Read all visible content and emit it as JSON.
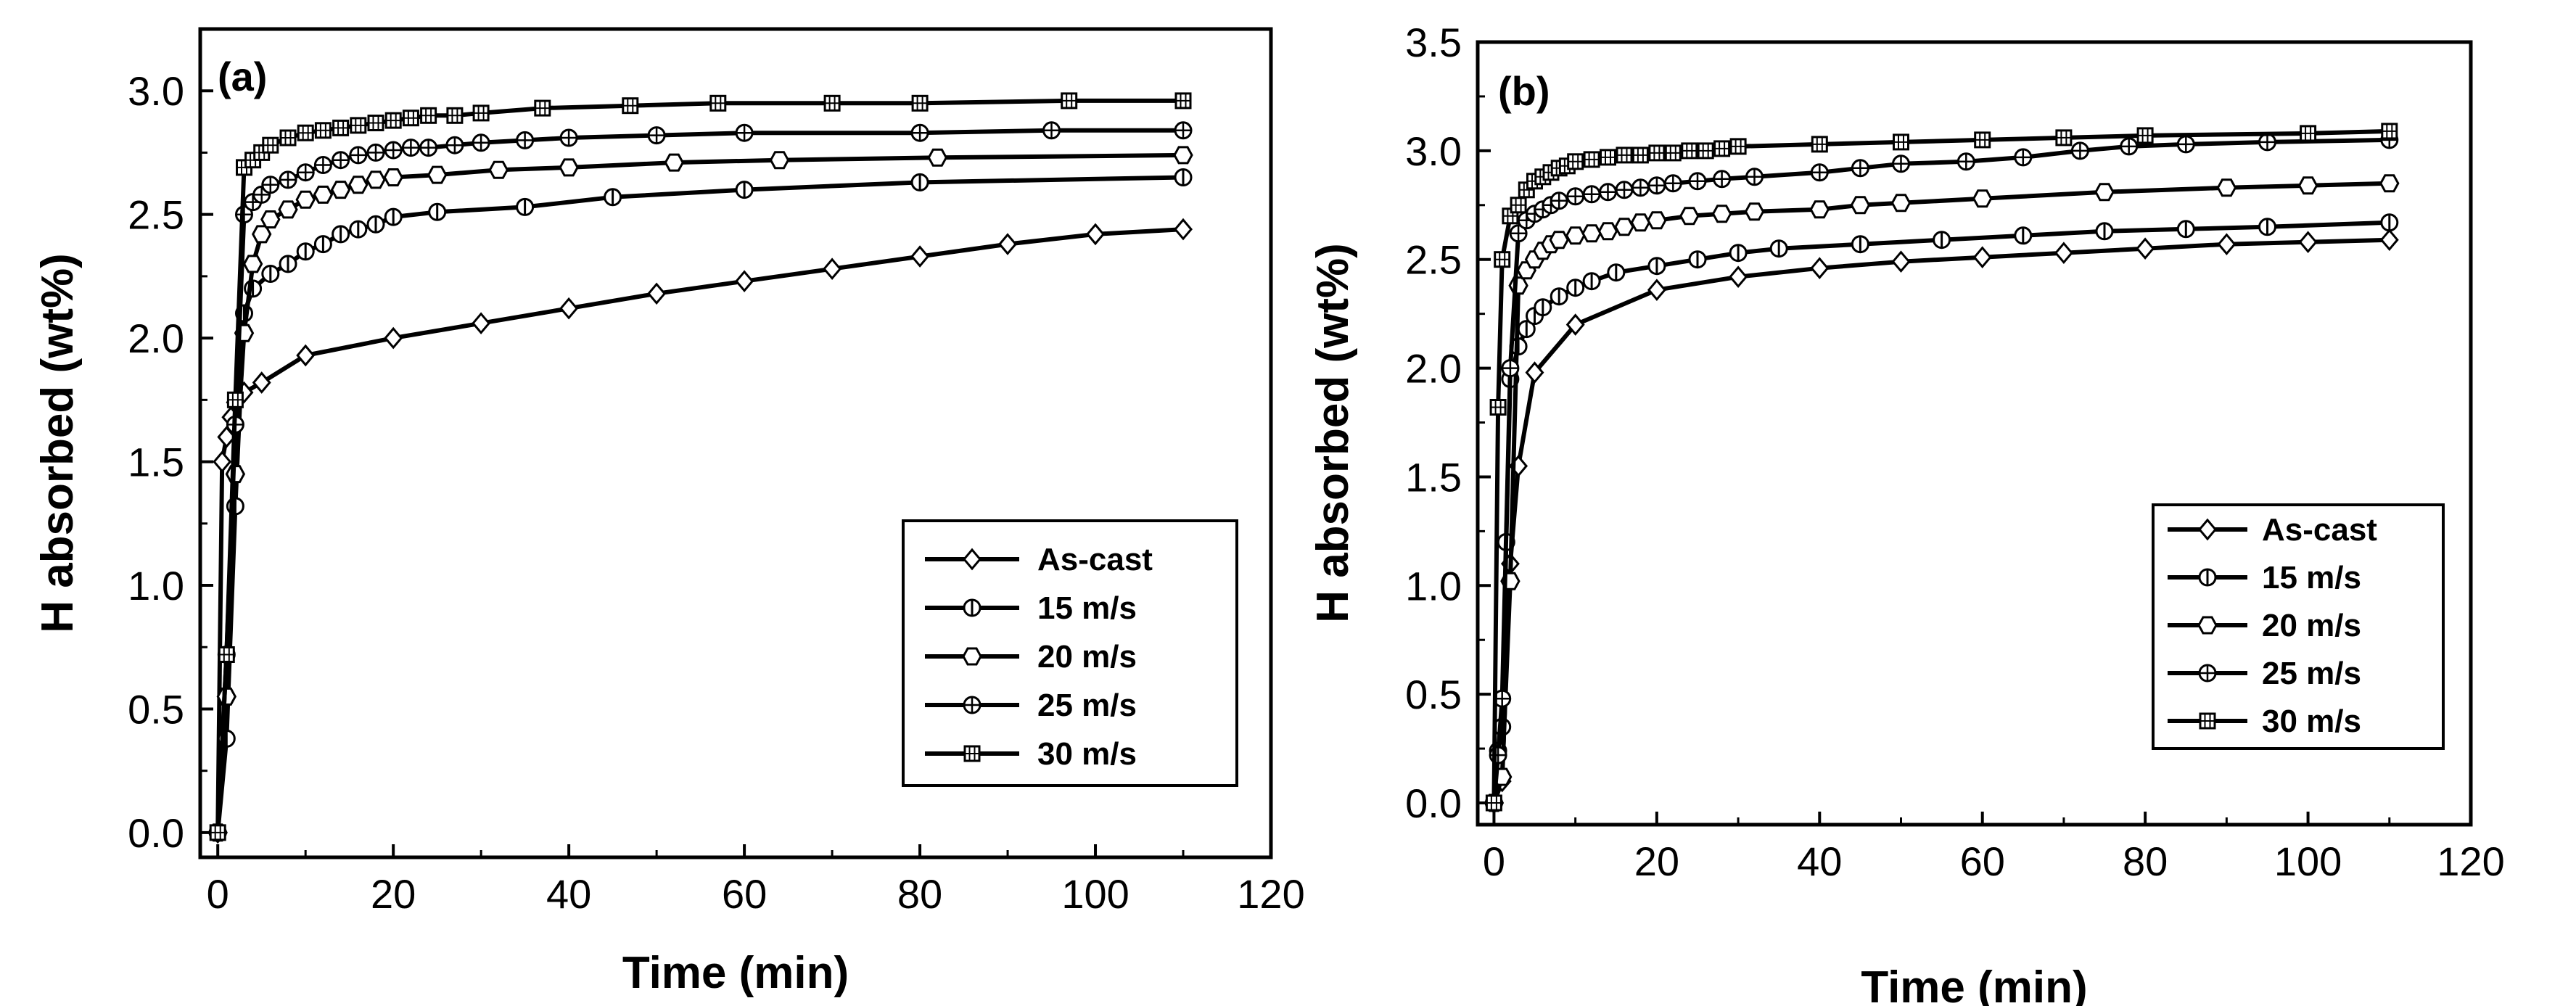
{
  "chart_data": [
    {
      "type": "line",
      "panel_label": "(a)",
      "xlabel": "Time (min)",
      "ylabel": "H absorbed (wt%)",
      "xlim": [
        -2,
        120
      ],
      "ylim": [
        -0.1,
        3.25
      ],
      "xticks": [
        "0",
        "20",
        "40",
        "60",
        "80",
        "100",
        "120"
      ],
      "yticks": [
        "0.0",
        "0.5",
        "1.0",
        "1.5",
        "2.0",
        "2.5",
        "3.0"
      ],
      "legend_position": "lower-right",
      "series": [
        {
          "name": "As-cast",
          "marker": "diamond",
          "x": [
            0,
            0.5,
            1,
            1.5,
            2,
            3,
            5,
            10,
            20,
            30,
            40,
            50,
            60,
            70,
            80,
            90,
            100,
            110
          ],
          "y": [
            0,
            1.5,
            1.6,
            1.68,
            1.74,
            1.78,
            1.82,
            1.93,
            2.0,
            2.06,
            2.12,
            2.18,
            2.23,
            2.28,
            2.33,
            2.38,
            2.42,
            2.44
          ]
        },
        {
          "name": "15 m/s",
          "marker": "circle-plus-v",
          "x": [
            0,
            1,
            2,
            3,
            4,
            6,
            8,
            10,
            12,
            14,
            16,
            18,
            20,
            25,
            35,
            45,
            60,
            80,
            110
          ],
          "y": [
            0,
            0.38,
            1.32,
            2.1,
            2.2,
            2.26,
            2.3,
            2.35,
            2.38,
            2.42,
            2.44,
            2.46,
            2.49,
            2.51,
            2.53,
            2.57,
            2.6,
            2.63,
            2.65
          ]
        },
        {
          "name": "20 m/s",
          "marker": "hexagon",
          "x": [
            0,
            1,
            2,
            3,
            4,
            5,
            6,
            8,
            10,
            12,
            14,
            16,
            18,
            20,
            25,
            32,
            40,
            52,
            64,
            82,
            110
          ],
          "y": [
            0,
            0.55,
            1.45,
            2.02,
            2.3,
            2.42,
            2.48,
            2.52,
            2.56,
            2.58,
            2.6,
            2.62,
            2.64,
            2.65,
            2.66,
            2.68,
            2.69,
            2.71,
            2.72,
            2.73,
            2.74
          ]
        },
        {
          "name": "25 m/s",
          "marker": "circle-plus",
          "x": [
            0,
            1,
            2,
            3,
            4,
            5,
            6,
            8,
            10,
            12,
            14,
            16,
            18,
            20,
            22,
            24,
            27,
            30,
            35,
            40,
            50,
            60,
            80,
            95,
            110
          ],
          "y": [
            0,
            0.72,
            1.65,
            2.5,
            2.55,
            2.58,
            2.62,
            2.64,
            2.67,
            2.7,
            2.72,
            2.74,
            2.75,
            2.76,
            2.77,
            2.77,
            2.78,
            2.79,
            2.8,
            2.81,
            2.82,
            2.83,
            2.83,
            2.84,
            2.84
          ]
        },
        {
          "name": "30 m/s",
          "marker": "square-grid",
          "x": [
            0,
            1,
            2,
            3,
            4,
            5,
            6,
            8,
            10,
            12,
            14,
            16,
            18,
            20,
            22,
            24,
            27,
            30,
            37,
            47,
            57,
            70,
            80,
            97,
            110
          ],
          "y": [
            0,
            0.72,
            1.75,
            2.69,
            2.72,
            2.75,
            2.78,
            2.81,
            2.83,
            2.84,
            2.85,
            2.86,
            2.87,
            2.88,
            2.89,
            2.9,
            2.9,
            2.91,
            2.93,
            2.94,
            2.95,
            2.95,
            2.95,
            2.96,
            2.96
          ]
        }
      ]
    },
    {
      "type": "line",
      "panel_label": "(b)",
      "xlabel": "Time (min)",
      "ylabel": "H absorbed (wt%)",
      "xlim": [
        -2,
        120
      ],
      "ylim": [
        -0.1,
        3.5
      ],
      "xticks": [
        "0",
        "20",
        "40",
        "60",
        "80",
        "100",
        "120"
      ],
      "yticks": [
        "0.0",
        "0.5",
        "1.0",
        "1.5",
        "2.0",
        "2.5",
        "3.0",
        "3.5"
      ],
      "legend_position": "center-right",
      "series": [
        {
          "name": "As-cast",
          "marker": "diamond",
          "x": [
            0,
            1,
            2,
            3,
            5,
            10,
            20,
            30,
            40,
            50,
            60,
            70,
            80,
            90,
            100,
            110
          ],
          "y": [
            0,
            0.1,
            1.1,
            1.55,
            1.98,
            2.2,
            2.36,
            2.42,
            2.46,
            2.49,
            2.51,
            2.53,
            2.55,
            2.57,
            2.58,
            2.59
          ]
        },
        {
          "name": "15 m/s",
          "marker": "circle-plus-v",
          "x": [
            0,
            0.5,
            1,
            1.5,
            2,
            3,
            4,
            5,
            6,
            8,
            10,
            12,
            15,
            20,
            25,
            30,
            35,
            45,
            55,
            65,
            75,
            85,
            95,
            110
          ],
          "y": [
            0,
            0.24,
            0.35,
            1.2,
            1.95,
            2.1,
            2.18,
            2.24,
            2.28,
            2.33,
            2.37,
            2.4,
            2.44,
            2.47,
            2.5,
            2.53,
            2.55,
            2.57,
            2.59,
            2.61,
            2.63,
            2.64,
            2.65,
            2.67
          ]
        },
        {
          "name": "20 m/s",
          "marker": "hexagon",
          "x": [
            0,
            1,
            2,
            3,
            4,
            5,
            6,
            7,
            8,
            10,
            12,
            14,
            16,
            18,
            20,
            24,
            28,
            32,
            40,
            45,
            50,
            60,
            75,
            90,
            100,
            110
          ],
          "y": [
            0,
            0.12,
            1.02,
            2.38,
            2.45,
            2.5,
            2.54,
            2.57,
            2.59,
            2.61,
            2.62,
            2.63,
            2.65,
            2.67,
            2.68,
            2.7,
            2.71,
            2.72,
            2.73,
            2.75,
            2.76,
            2.78,
            2.81,
            2.83,
            2.84,
            2.85
          ]
        },
        {
          "name": "25 m/s",
          "marker": "circle-plus",
          "x": [
            0,
            0.5,
            1,
            2,
            3,
            4,
            5,
            6,
            7,
            8,
            10,
            12,
            14,
            16,
            18,
            20,
            22,
            25,
            28,
            32,
            40,
            45,
            50,
            58,
            65,
            72,
            78,
            85,
            95,
            110
          ],
          "y": [
            0,
            0.22,
            0.48,
            2.0,
            2.62,
            2.68,
            2.71,
            2.73,
            2.75,
            2.77,
            2.79,
            2.8,
            2.81,
            2.82,
            2.83,
            2.84,
            2.85,
            2.86,
            2.87,
            2.88,
            2.9,
            2.92,
            2.94,
            2.95,
            2.97,
            3.0,
            3.02,
            3.03,
            3.04,
            3.05
          ]
        },
        {
          "name": "30 m/s",
          "marker": "square-grid",
          "x": [
            0,
            0.5,
            1,
            2,
            3,
            4,
            5,
            6,
            7,
            8,
            9,
            10,
            12,
            14,
            16,
            18,
            20,
            22,
            24,
            26,
            28,
            30,
            40,
            50,
            60,
            70,
            80,
            100,
            110
          ],
          "y": [
            0,
            1.82,
            2.5,
            2.7,
            2.75,
            2.82,
            2.86,
            2.88,
            2.9,
            2.92,
            2.93,
            2.95,
            2.96,
            2.97,
            2.98,
            2.98,
            2.99,
            2.99,
            3.0,
            3.0,
            3.01,
            3.02,
            3.03,
            3.04,
            3.05,
            3.06,
            3.07,
            3.08,
            3.09
          ]
        }
      ]
    }
  ]
}
